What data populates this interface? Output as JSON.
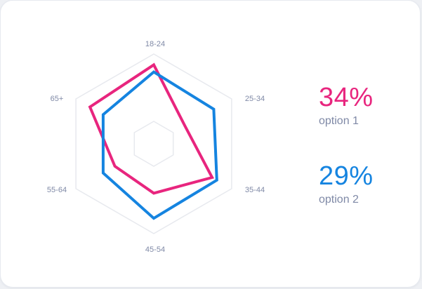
{
  "chart_data": {
    "type": "radar",
    "categories": [
      "18-24",
      "25-34",
      "35-44",
      "45-54",
      "55-64",
      "65+"
    ],
    "rmax": 100,
    "grid_levels": [
      25,
      100
    ],
    "grid": true,
    "legend_position": "right",
    "series": [
      {
        "name": "option 1",
        "values": [
          88,
          40,
          75,
          55,
          50,
          82
        ],
        "color": "#e8257e",
        "share": "34%"
      },
      {
        "name": "option 2",
        "values": [
          80,
          77,
          81,
          83,
          65,
          65
        ],
        "color": "#1584e0",
        "share": "29%"
      }
    ]
  },
  "colors": {
    "grid": "#e7e9ee",
    "label": "#7f89a6",
    "card_background": "#ffffff"
  }
}
